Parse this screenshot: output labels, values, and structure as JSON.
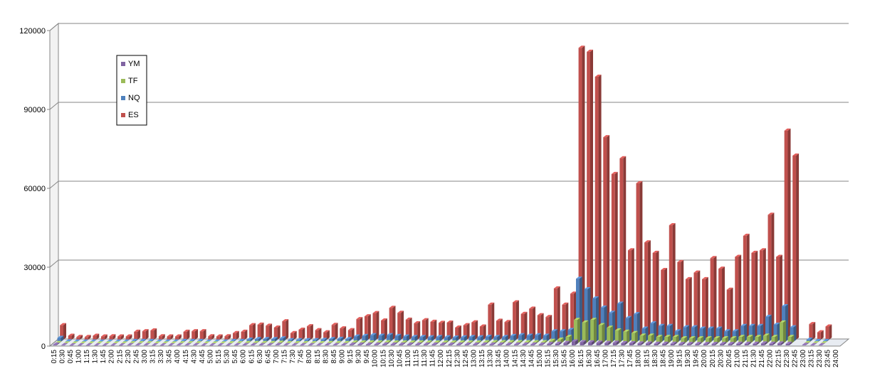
{
  "chart_data": {
    "type": "bar",
    "title": "",
    "xlabel": "",
    "ylabel": "",
    "ylim": [
      0,
      120000
    ],
    "yticks": [
      0,
      30000,
      60000,
      90000,
      120000
    ],
    "grid": true,
    "legend_position": "top-left",
    "categories": [
      "0:15",
      "0:30",
      "0:45",
      "1:00",
      "1:15",
      "1:30",
      "1:45",
      "2:00",
      "2:15",
      "2:30",
      "2:45",
      "3:00",
      "3:15",
      "3:30",
      "3:45",
      "4:00",
      "4:15",
      "4:30",
      "4:45",
      "5:00",
      "5:15",
      "5:30",
      "5:45",
      "6:00",
      "6:15",
      "6:30",
      "6:45",
      "7:00",
      "7:15",
      "7:30",
      "7:45",
      "8:00",
      "8:15",
      "8:30",
      "8:45",
      "9:00",
      "9:15",
      "9:30",
      "9:45",
      "10:00",
      "10:15",
      "10:30",
      "10:45",
      "11:00",
      "11:15",
      "11:30",
      "11:45",
      "12:00",
      "12:15",
      "12:30",
      "12:45",
      "13:00",
      "13:15",
      "13:30",
      "13:45",
      "14:00",
      "14:15",
      "14:30",
      "14:45",
      "15:00",
      "15:15",
      "15:30",
      "15:45",
      "16:00",
      "16:15",
      "16:30",
      "16:45",
      "17:00",
      "17:15",
      "17:30",
      "17:45",
      "18:00",
      "18:15",
      "18:30",
      "18:45",
      "19:00",
      "19:15",
      "19:30",
      "19:45",
      "20:00",
      "20:15",
      "20:30",
      "20:45",
      "21:00",
      "21:15",
      "21:30",
      "21:45",
      "22:00",
      "22:15",
      "22:30",
      "22:45",
      "23:00",
      "23:15",
      "23:30",
      "23:45",
      "24:00"
    ],
    "series": [
      {
        "name": "YM",
        "color": "#8064a2",
        "values": [
          300,
          100,
          50,
          50,
          50,
          50,
          50,
          50,
          50,
          100,
          100,
          100,
          50,
          50,
          50,
          100,
          100,
          100,
          50,
          50,
          50,
          50,
          100,
          150,
          150,
          150,
          150,
          200,
          100,
          100,
          100,
          100,
          100,
          150,
          150,
          150,
          300,
          300,
          300,
          300,
          350,
          300,
          300,
          300,
          300,
          300,
          300,
          300,
          300,
          300,
          300,
          300,
          300,
          300,
          300,
          300,
          300,
          300,
          300,
          300,
          500,
          600,
          900,
          1500,
          1200,
          1100,
          1000,
          900,
          1000,
          800,
          800,
          700,
          700,
          600,
          600,
          600,
          500,
          500,
          500,
          500,
          500,
          500,
          500,
          600,
          600,
          600,
          700,
          600,
          700,
          600,
          0,
          200,
          100,
          100,
          0,
          0
        ]
      },
      {
        "name": "TF",
        "color": "#9bbb59",
        "values": [
          200,
          50,
          50,
          50,
          50,
          50,
          50,
          50,
          50,
          100,
          100,
          100,
          50,
          50,
          50,
          100,
          100,
          100,
          50,
          50,
          50,
          100,
          100,
          200,
          200,
          200,
          200,
          300,
          150,
          150,
          150,
          150,
          150,
          200,
          200,
          200,
          400,
          400,
          400,
          400,
          500,
          400,
          400,
          400,
          400,
          400,
          400,
          400,
          400,
          400,
          400,
          400,
          500,
          500,
          500,
          500,
          500,
          500,
          500,
          500,
          1000,
          1500,
          2500,
          9000,
          8000,
          9000,
          7000,
          6000,
          5000,
          4500,
          4000,
          3000,
          3000,
          2500,
          2500,
          2500,
          2000,
          2000,
          2000,
          2000,
          2000,
          2000,
          2000,
          2500,
          2500,
          2500,
          3000,
          2500,
          8000,
          2500,
          0,
          200,
          100,
          100,
          0,
          0
        ]
      },
      {
        "name": "NQ",
        "color": "#4f81bd",
        "values": [
          1500,
          200,
          100,
          100,
          100,
          100,
          100,
          100,
          100,
          300,
          300,
          300,
          100,
          100,
          100,
          300,
          300,
          300,
          100,
          100,
          100,
          300,
          300,
          800,
          1000,
          1000,
          1000,
          1300,
          600,
          600,
          600,
          600,
          700,
          1000,
          1100,
          1000,
          2000,
          2200,
          2500,
          2300,
          2500,
          2200,
          2000,
          1800,
          1800,
          1700,
          1800,
          1700,
          1600,
          1700,
          1800,
          1700,
          1900,
          1800,
          1800,
          2200,
          2500,
          2300,
          2500,
          2300,
          4000,
          4000,
          4500,
          24000,
          20000,
          16500,
          13000,
          11000,
          14500,
          9000,
          10500,
          5000,
          7000,
          6000,
          6000,
          4000,
          5500,
          5500,
          5000,
          5000,
          5000,
          4000,
          4000,
          6000,
          6000,
          6000,
          9500,
          6500,
          13500,
          5500,
          0,
          800,
          300,
          300,
          0,
          0
        ]
      },
      {
        "name": "ES",
        "color": "#c0504d",
        "values": [
          5500,
          1500,
          1000,
          1000,
          1500,
          1200,
          1300,
          1200,
          1200,
          3000,
          3200,
          3500,
          1300,
          1200,
          1200,
          3000,
          3200,
          3200,
          1300,
          1200,
          1300,
          2500,
          3000,
          5500,
          5700,
          5300,
          4600,
          7000,
          2500,
          3800,
          5100,
          3600,
          2800,
          5600,
          4300,
          3600,
          7800,
          8900,
          10100,
          7300,
          12100,
          10200,
          7600,
          6200,
          7400,
          6800,
          6400,
          6500,
          4600,
          5500,
          6600,
          5000,
          13300,
          7200,
          6700,
          14200,
          9800,
          11800,
          9300,
          8600,
          19500,
          13300,
          17500,
          111000,
          109500,
          100000,
          77000,
          63000,
          69000,
          34000,
          59500,
          37000,
          33000,
          26500,
          43500,
          29500,
          23000,
          25500,
          23000,
          31000,
          27000,
          19000,
          31500,
          39500,
          33000,
          34000,
          47500,
          31500,
          79500,
          70000,
          0,
          5900,
          2800,
          5000,
          0,
          0
        ]
      }
    ]
  }
}
